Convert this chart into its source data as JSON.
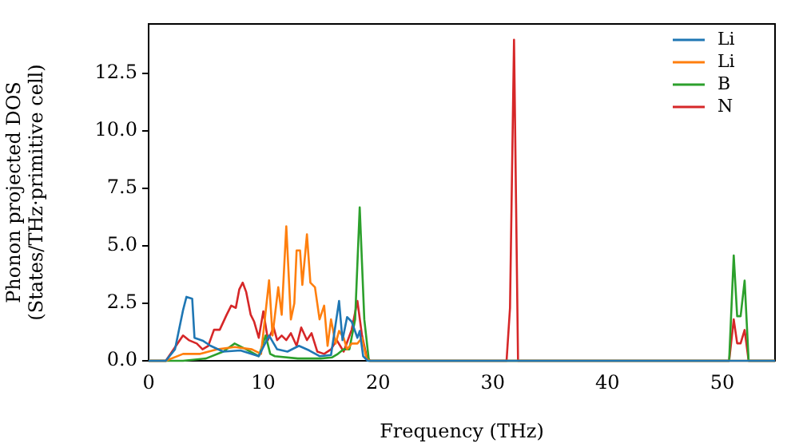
{
  "chart_data": {
    "type": "line",
    "xlabel": "Frequency (THz)",
    "ylabel": "Phonon projected DOS\n(States/THz·primitive cell)",
    "xlim": [
      0,
      54.6
    ],
    "ylim": [
      0,
      14.65
    ],
    "xticks": [
      0,
      10,
      20,
      30,
      40,
      50
    ],
    "yticks": [
      {
        "value": 0,
        "label": "0.0"
      },
      {
        "value": 2.5,
        "label": "2.5"
      },
      {
        "value": 5,
        "label": "5.0"
      },
      {
        "value": 7.5,
        "label": "7.5"
      },
      {
        "value": 10,
        "label": "10.0"
      },
      {
        "value": 12.5,
        "label": "12.5"
      }
    ],
    "legend": "top right",
    "grid": false,
    "marker": "none",
    "line_style": "solid",
    "series": [
      {
        "name": "Li",
        "color": "#1f77b4",
        "x": [
          0,
          1.5,
          2.3,
          3.0,
          3.3,
          3.8,
          4.0,
          4.7,
          5.4,
          6.5,
          8,
          9.6,
          10.5,
          11.2,
          12.1,
          13.1,
          14,
          14.9,
          15.9,
          16.6,
          16.9,
          17.3,
          17.7,
          18.2,
          18.4,
          18.7,
          19.1,
          54.6
        ],
        "values": [
          0,
          0,
          0.5,
          2.2,
          2.78,
          2.7,
          1.0,
          0.88,
          0.65,
          0.4,
          0.45,
          0.2,
          1.1,
          0.5,
          0.4,
          0.65,
          0.45,
          0.2,
          0.25,
          2.6,
          0.9,
          1.9,
          1.7,
          1.0,
          1.3,
          0.2,
          0,
          0
        ]
      },
      {
        "name": "Li",
        "color": "#ff7f0e",
        "x": [
          0,
          1.5,
          3,
          4.5,
          6,
          7.5,
          9,
          9.8,
          10.5,
          10.8,
          11.3,
          11.6,
          12,
          12.4,
          12.7,
          12.9,
          13.2,
          13.4,
          13.8,
          14.1,
          14.5,
          14.9,
          15.3,
          15.6,
          15.9,
          16.3,
          16.6,
          17,
          17.3,
          17.7,
          18.2,
          18.6,
          19,
          19.3,
          54.6
        ],
        "values": [
          0,
          0,
          0.3,
          0.3,
          0.5,
          0.6,
          0.5,
          0.3,
          3.5,
          1.1,
          3.2,
          2.0,
          5.85,
          1.8,
          2.5,
          4.8,
          4.8,
          3.3,
          5.5,
          3.4,
          3.2,
          1.8,
          2.4,
          0.65,
          1.8,
          0.75,
          1.3,
          1.0,
          0.5,
          0.75,
          0.75,
          1.0,
          0.07,
          0,
          0
        ]
      },
      {
        "name": "B",
        "color": "#2ca02c",
        "x": [
          0,
          3,
          5,
          6.5,
          7.5,
          8.5,
          9.6,
          10.2,
          10.6,
          11,
          13,
          15,
          16,
          16.5,
          17,
          17.5,
          18,
          18.4,
          18.8,
          19.2,
          50.6,
          51.0,
          51.3,
          51.6,
          51.95,
          52.3,
          54.6
        ],
        "values": [
          0,
          0,
          0.1,
          0.4,
          0.75,
          0.5,
          0.2,
          1.1,
          0.3,
          0.2,
          0.1,
          0.1,
          0.15,
          0.3,
          0.5,
          0.5,
          1.8,
          6.67,
          1.8,
          0,
          0,
          4.58,
          1.94,
          1.94,
          3.49,
          0,
          0
        ]
      },
      {
        "name": "N",
        "color": "#d62728",
        "x": [
          0,
          1.5,
          3,
          3.5,
          4.2,
          4.7,
          5.2,
          5.7,
          6.2,
          6.8,
          7.2,
          7.6,
          7.9,
          8.2,
          8.5,
          8.9,
          9.2,
          9.6,
          10,
          10.4,
          10.9,
          11.2,
          11.6,
          12,
          12.4,
          12.9,
          13.3,
          13.8,
          14.2,
          14.7,
          15.3,
          15.9,
          16.4,
          17,
          17.7,
          18.2,
          18.6,
          19,
          19.3,
          31.2,
          31.5,
          31.85,
          32.2,
          50.6,
          51.0,
          51.3,
          51.6,
          51.95,
          52.3,
          54.6
        ],
        "values": [
          0,
          0,
          1.1,
          0.9,
          0.75,
          0.5,
          0.65,
          1.35,
          1.35,
          2.0,
          2.4,
          2.3,
          3.1,
          3.4,
          3.0,
          2.0,
          1.7,
          1.0,
          2.15,
          0.9,
          1.45,
          0.9,
          1.1,
          0.9,
          1.2,
          0.65,
          1.45,
          0.9,
          1.2,
          0.4,
          0.3,
          0.5,
          0.9,
          0.4,
          1.35,
          2.6,
          1.1,
          0.2,
          0,
          0,
          2.3,
          13.96,
          0,
          0,
          1.8,
          0.76,
          0.76,
          1.34,
          0,
          0
        ]
      }
    ]
  }
}
